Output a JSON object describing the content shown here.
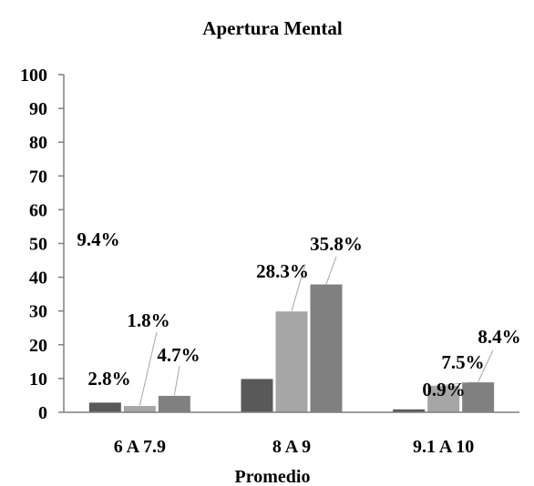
{
  "chart_data": {
    "type": "bar",
    "title": "Apertura Mental",
    "xlabel": "Promedio",
    "ylabel": "",
    "ylim": [
      0,
      100
    ],
    "yticks": [
      "0",
      "10",
      "20",
      "30",
      "40",
      "50",
      "60",
      "70",
      "80",
      "90",
      "100"
    ],
    "categories": [
      "6 A 7.9",
      "8 A 9",
      "9.1 A 10"
    ],
    "legend": "none",
    "grid": false,
    "series": [
      {
        "color": "#595959",
        "values": [
          3,
          10,
          1
        ],
        "labels": [
          "2.8%",
          "9.4%",
          "0.9%"
        ]
      },
      {
        "color": "#a6a6a6",
        "values": [
          2,
          30,
          8
        ],
        "labels": [
          "1.8%",
          "28.3%",
          "7.5%"
        ]
      },
      {
        "color": "#808080",
        "values": [
          5,
          38,
          9
        ],
        "labels": [
          "4.7%",
          "35.8%",
          "8.4%"
        ]
      }
    ]
  }
}
